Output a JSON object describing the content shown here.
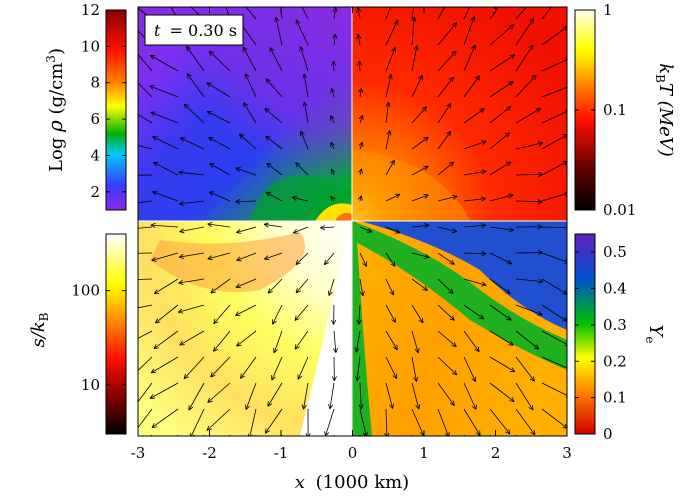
{
  "chart_data": {
    "type": "heatmap",
    "title": "",
    "time_label": "t = 0.30 s",
    "time_var": "t",
    "time_value": "= 0.30 s",
    "xlabel": {
      "var": "x",
      "unit": "(1000 km)"
    },
    "xlim": [
      -3,
      3
    ],
    "x_ticks": [
      "-3",
      "-2",
      "-1",
      "0",
      "1",
      "2",
      "3"
    ],
    "quadrants": [
      {
        "position": "top-left",
        "quantity": "density",
        "label": "Log ρ (g/cm3)",
        "colorbar": {
          "scale": "linear",
          "range": [
            1,
            12
          ],
          "ticks": [
            "2",
            "4",
            "6",
            "8",
            "10",
            "12"
          ],
          "colors": [
            "#8a2be2",
            "#3030ff",
            "#00c8ff",
            "#00b000",
            "#ffff00",
            "#ff8000",
            "#ff0000",
            "#900000"
          ]
        }
      },
      {
        "position": "top-right",
        "quantity": "temperature",
        "label": "kBT (MeV)",
        "colorbar": {
          "scale": "log",
          "range": [
            0.01,
            1
          ],
          "ticks": [
            "0.01",
            "0.1",
            "1"
          ],
          "colors": [
            "#000000",
            "#800000",
            "#ff0000",
            "#ff8000",
            "#ffff00",
            "#ffffe0"
          ]
        }
      },
      {
        "position": "bottom-left",
        "quantity": "entropy",
        "label": "s/kB",
        "colorbar": {
          "scale": "log",
          "range": [
            3,
            400
          ],
          "ticks": [
            "10",
            "100"
          ],
          "colors": [
            "#000000",
            "#800000",
            "#ff0000",
            "#ff8000",
            "#ffff00",
            "#ffffff"
          ]
        }
      },
      {
        "position": "bottom-right",
        "quantity": "electron fraction",
        "label": "Ye",
        "colorbar": {
          "scale": "linear",
          "range": [
            0,
            0.55
          ],
          "ticks": [
            "0",
            "0.1",
            "0.2",
            "0.3",
            "0.4",
            "0.5"
          ],
          "colors": [
            "#d00000",
            "#ff8000",
            "#ffff00",
            "#00c000",
            "#0060c0",
            "#6020c0"
          ]
        }
      }
    ],
    "labels": {
      "rho_prefix": "Log ",
      "rho_symbol": "ρ",
      "rho_unit": " (g/cm",
      "rho_exp": "3",
      "rho_close": ")",
      "kT_k": "k",
      "kT_sub": "B",
      "kT_rest": "T (MeV)",
      "s_main": "s/k",
      "s_sub": "B",
      "ye_main": "Y",
      "ye_sub": "e"
    }
  }
}
